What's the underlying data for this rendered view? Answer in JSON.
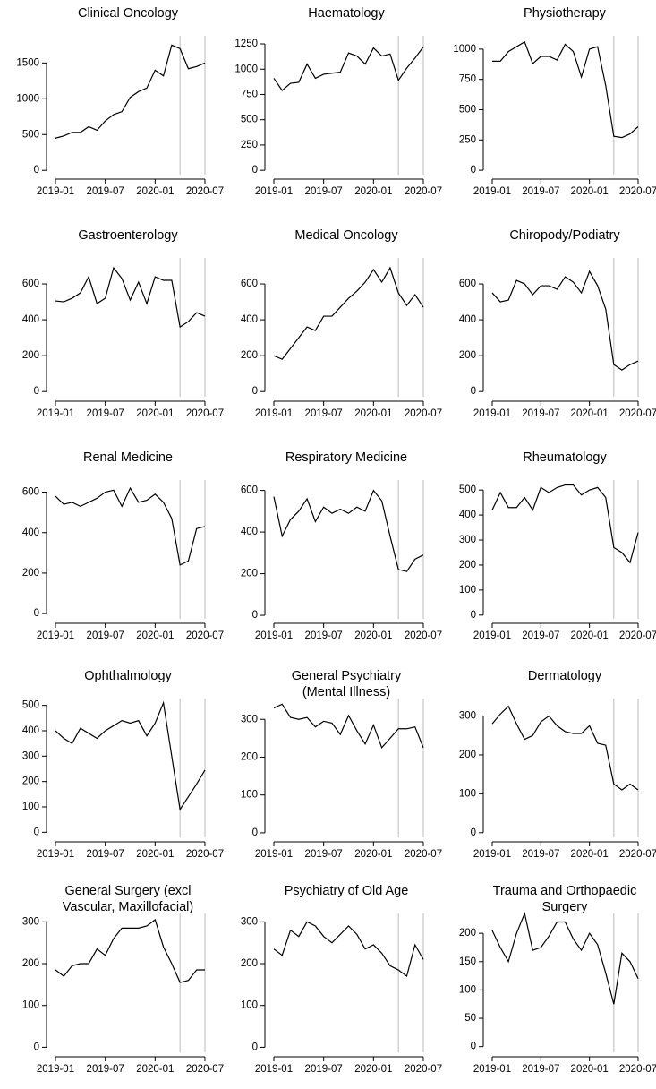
{
  "chart_data": [
    {
      "type": "line",
      "title": [
        "Clinical Oncology"
      ],
      "x": [
        "2019-01",
        "2019-02",
        "2019-03",
        "2019-04",
        "2019-05",
        "2019-06",
        "2019-07",
        "2019-08",
        "2019-09",
        "2019-10",
        "2019-11",
        "2019-12",
        "2020-01",
        "2020-02",
        "2020-03",
        "2020-04",
        "2020-05",
        "2020-06",
        "2020-07"
      ],
      "values": [
        450,
        480,
        530,
        530,
        610,
        560,
        690,
        780,
        820,
        1020,
        1100,
        1150,
        1400,
        1320,
        1750,
        1700,
        1420,
        1450,
        1500
      ],
      "color": "#000000",
      "ylim": [
        -60,
        1880
      ],
      "yticks": [
        0,
        500,
        1000,
        1500
      ],
      "xticks": [
        "2019-01",
        "2019-07",
        "2020-01",
        "2020-07"
      ],
      "vlines": [
        "2020-04",
        "2020-07"
      ],
      "vline_color": "#bbbbbb"
    },
    {
      "type": "line",
      "title": [
        "Haematology"
      ],
      "x": [
        "2019-01",
        "2019-02",
        "2019-03",
        "2019-04",
        "2019-05",
        "2019-06",
        "2019-07",
        "2019-08",
        "2019-09",
        "2019-10",
        "2019-11",
        "2019-12",
        "2020-01",
        "2020-02",
        "2020-03",
        "2020-04",
        "2020-05",
        "2020-06",
        "2020-07"
      ],
      "values": [
        910,
        790,
        860,
        870,
        1050,
        910,
        950,
        960,
        970,
        1160,
        1130,
        1050,
        1210,
        1130,
        1150,
        890,
        1010,
        1110,
        1220
      ],
      "color": "#000000",
      "ylim": [
        -43,
        1330
      ],
      "yticks": [
        0,
        250,
        500,
        750,
        1000,
        1250
      ],
      "xticks": [
        "2019-01",
        "2019-07",
        "2020-01",
        "2020-07"
      ],
      "vlines": [
        "2020-04",
        "2020-07"
      ],
      "vline_color": "#bbbbbb"
    },
    {
      "type": "line",
      "title": [
        "Physiotherapy"
      ],
      "x": [
        "2019-01",
        "2019-02",
        "2019-03",
        "2019-04",
        "2019-05",
        "2019-06",
        "2019-07",
        "2019-08",
        "2019-09",
        "2019-10",
        "2019-11",
        "2019-12",
        "2020-01",
        "2020-02",
        "2020-03",
        "2020-04",
        "2020-05",
        "2020-06",
        "2020-07"
      ],
      "values": [
        900,
        900,
        980,
        1020,
        1060,
        880,
        940,
        940,
        910,
        1040,
        980,
        770,
        1000,
        1020,
        700,
        280,
        270,
        300,
        360
      ],
      "color": "#000000",
      "ylim": [
        -36,
        1110
      ],
      "yticks": [
        0,
        250,
        500,
        750,
        1000
      ],
      "xticks": [
        "2019-01",
        "2019-07",
        "2020-01",
        "2020-07"
      ],
      "vlines": [
        "2020-04",
        "2020-07"
      ],
      "vline_color": "#bbbbbb"
    },
    {
      "type": "line",
      "title": [
        "Gastroenterology"
      ],
      "x": [
        "2019-01",
        "2019-02",
        "2019-03",
        "2019-04",
        "2019-05",
        "2019-06",
        "2019-07",
        "2019-08",
        "2019-09",
        "2019-10",
        "2019-11",
        "2019-12",
        "2020-01",
        "2020-02",
        "2020-03",
        "2020-04",
        "2020-05",
        "2020-06",
        "2020-07"
      ],
      "values": [
        505,
        500,
        520,
        550,
        640,
        490,
        520,
        690,
        630,
        510,
        610,
        490,
        640,
        620,
        620,
        360,
        390,
        440,
        420
      ],
      "color": "#000000",
      "ylim": [
        -29,
        745
      ],
      "yticks": [
        0,
        200,
        400,
        600
      ],
      "xticks": [
        "2019-01",
        "2019-07",
        "2020-01",
        "2020-07"
      ],
      "vlines": [
        "2020-04",
        "2020-07"
      ],
      "vline_color": "#bbbbbb"
    },
    {
      "type": "line",
      "title": [
        "Medical Oncology"
      ],
      "x": [
        "2019-01",
        "2019-02",
        "2019-03",
        "2019-04",
        "2019-05",
        "2019-06",
        "2019-07",
        "2019-08",
        "2019-09",
        "2019-10",
        "2019-11",
        "2019-12",
        "2020-01",
        "2020-02",
        "2020-03",
        "2020-04",
        "2020-05",
        "2020-06",
        "2020-07"
      ],
      "values": [
        200,
        180,
        240,
        300,
        360,
        340,
        420,
        420,
        470,
        520,
        560,
        610,
        680,
        610,
        690,
        550,
        480,
        540,
        470
      ],
      "color": "#000000",
      "ylim": [
        -29,
        745
      ],
      "yticks": [
        0,
        200,
        400,
        600
      ],
      "xticks": [
        "2019-01",
        "2019-07",
        "2020-01",
        "2020-07"
      ],
      "vlines": [
        "2020-04",
        "2020-07"
      ],
      "vline_color": "#bbbbbb"
    },
    {
      "type": "line",
      "title": [
        "Chiropody/Podiatry"
      ],
      "x": [
        "2019-01",
        "2019-02",
        "2019-03",
        "2019-04",
        "2019-05",
        "2019-06",
        "2019-07",
        "2019-08",
        "2019-09",
        "2019-10",
        "2019-11",
        "2019-12",
        "2020-01",
        "2020-02",
        "2020-03",
        "2020-04",
        "2020-05",
        "2020-06",
        "2020-07"
      ],
      "values": [
        550,
        500,
        510,
        620,
        600,
        540,
        590,
        590,
        570,
        640,
        610,
        550,
        670,
        590,
        460,
        150,
        120,
        150,
        170
      ],
      "color": "#000000",
      "ylim": [
        -29,
        745
      ],
      "yticks": [
        0,
        200,
        400,
        600
      ],
      "xticks": [
        "2019-01",
        "2019-07",
        "2020-01",
        "2020-07"
      ],
      "vlines": [
        "2020-04",
        "2020-07"
      ],
      "vline_color": "#bbbbbb"
    },
    {
      "type": "line",
      "title": [
        "Renal Medicine"
      ],
      "x": [
        "2019-01",
        "2019-02",
        "2019-03",
        "2019-04",
        "2019-05",
        "2019-06",
        "2019-07",
        "2019-08",
        "2019-09",
        "2019-10",
        "2019-11",
        "2019-12",
        "2020-01",
        "2020-02",
        "2020-03",
        "2020-04",
        "2020-05",
        "2020-06",
        "2020-07"
      ],
      "values": [
        580,
        540,
        550,
        530,
        550,
        570,
        600,
        610,
        530,
        620,
        550,
        560,
        590,
        550,
        470,
        240,
        260,
        420,
        430
      ],
      "color": "#000000",
      "ylim": [
        -26,
        660
      ],
      "yticks": [
        0,
        200,
        400,
        600
      ],
      "xticks": [
        "2019-01",
        "2019-07",
        "2020-01",
        "2020-07"
      ],
      "vlines": [
        "2020-04",
        "2020-07"
      ],
      "vline_color": "#bbbbbb"
    },
    {
      "type": "line",
      "title": [
        "Respiratory Medicine"
      ],
      "x": [
        "2019-01",
        "2019-02",
        "2019-03",
        "2019-04",
        "2019-05",
        "2019-06",
        "2019-07",
        "2019-08",
        "2019-09",
        "2019-10",
        "2019-11",
        "2019-12",
        "2020-01",
        "2020-02",
        "2020-03",
        "2020-04",
        "2020-05",
        "2020-06",
        "2020-07"
      ],
      "values": [
        570,
        380,
        460,
        500,
        560,
        450,
        520,
        490,
        510,
        490,
        520,
        500,
        600,
        550,
        380,
        220,
        210,
        270,
        290
      ],
      "color": "#000000",
      "ylim": [
        -17,
        650
      ],
      "yticks": [
        0,
        200,
        400,
        600
      ],
      "xticks": [
        "2019-01",
        "2019-07",
        "2020-01",
        "2020-07"
      ],
      "vlines": [
        "2020-04",
        "2020-07"
      ],
      "vline_color": "#bbbbbb"
    },
    {
      "type": "line",
      "title": [
        "Rheumatology"
      ],
      "x": [
        "2019-01",
        "2019-02",
        "2019-03",
        "2019-04",
        "2019-05",
        "2019-06",
        "2019-07",
        "2019-08",
        "2019-09",
        "2019-10",
        "2019-11",
        "2019-12",
        "2020-01",
        "2020-02",
        "2020-03",
        "2020-04",
        "2020-05",
        "2020-06",
        "2020-07"
      ],
      "values": [
        420,
        490,
        430,
        430,
        470,
        420,
        510,
        490,
        510,
        520,
        520,
        480,
        500,
        510,
        470,
        270,
        250,
        210,
        330
      ],
      "color": "#000000",
      "ylim": [
        -15,
        540
      ],
      "yticks": [
        0,
        100,
        200,
        300,
        400,
        500
      ],
      "xticks": [
        "2019-01",
        "2019-07",
        "2020-01",
        "2020-07"
      ],
      "vlines": [
        "2020-04",
        "2020-07"
      ],
      "vline_color": "#bbbbbb"
    },
    {
      "type": "line",
      "title": [
        "Ophthalmology"
      ],
      "x": [
        "2019-01",
        "2019-02",
        "2019-03",
        "2019-04",
        "2019-05",
        "2019-06",
        "2019-07",
        "2019-08",
        "2019-09",
        "2019-10",
        "2019-11",
        "2019-12",
        "2020-01",
        "2020-02",
        "2020-03",
        "2020-04",
        "2020-05",
        "2020-06",
        "2020-07"
      ],
      "values": [
        400,
        370,
        350,
        410,
        390,
        370,
        400,
        420,
        440,
        430,
        440,
        380,
        430,
        510,
        300,
        90,
        140,
        190,
        245
      ],
      "color": "#000000",
      "ylim": [
        -20,
        527
      ],
      "yticks": [
        0,
        100,
        200,
        300,
        400,
        500
      ],
      "xticks": [
        "2019-01",
        "2019-07",
        "2020-01",
        "2020-07"
      ],
      "vlines": [
        "2020-04",
        "2020-07"
      ],
      "vline_color": "#bbbbbb"
    },
    {
      "type": "line",
      "title": [
        "General Psychiatry",
        "(Mental Illness)"
      ],
      "x": [
        "2019-01",
        "2019-02",
        "2019-03",
        "2019-04",
        "2019-05",
        "2019-06",
        "2019-07",
        "2019-08",
        "2019-09",
        "2019-10",
        "2019-11",
        "2019-12",
        "2020-01",
        "2020-02",
        "2020-03",
        "2020-04",
        "2020-05",
        "2020-06",
        "2020-07"
      ],
      "values": [
        330,
        340,
        305,
        300,
        305,
        280,
        295,
        290,
        260,
        310,
        270,
        235,
        285,
        225,
        250,
        275,
        275,
        280,
        225
      ],
      "color": "#000000",
      "ylim": [
        -12,
        355
      ],
      "yticks": [
        0,
        100,
        200,
        300
      ],
      "xticks": [
        "2019-01",
        "2019-07",
        "2020-01",
        "2020-07"
      ],
      "vlines": [
        "2020-04",
        "2020-07"
      ],
      "vline_color": "#bbbbbb"
    },
    {
      "type": "line",
      "title": [
        "Dermatology"
      ],
      "x": [
        "2019-01",
        "2019-02",
        "2019-03",
        "2019-04",
        "2019-05",
        "2019-06",
        "2019-07",
        "2019-08",
        "2019-09",
        "2019-10",
        "2019-11",
        "2019-12",
        "2020-01",
        "2020-02",
        "2020-03",
        "2020-04",
        "2020-05",
        "2020-06",
        "2020-07"
      ],
      "values": [
        280,
        305,
        325,
        280,
        240,
        250,
        285,
        300,
        275,
        260,
        255,
        255,
        275,
        230,
        225,
        125,
        110,
        125,
        110
      ],
      "color": "#000000",
      "ylim": [
        -12,
        345
      ],
      "yticks": [
        0,
        100,
        200,
        300
      ],
      "xticks": [
        "2019-01",
        "2019-07",
        "2020-01",
        "2020-07"
      ],
      "vlines": [
        "2020-04",
        "2020-07"
      ],
      "vline_color": "#bbbbbb"
    },
    {
      "type": "line",
      "title": [
        "General Surgery (excl",
        "Vascular, Maxillofacial)"
      ],
      "x": [
        "2019-01",
        "2019-02",
        "2019-03",
        "2019-04",
        "2019-05",
        "2019-06",
        "2019-07",
        "2019-08",
        "2019-09",
        "2019-10",
        "2019-11",
        "2019-12",
        "2020-01",
        "2020-02",
        "2020-03",
        "2020-04",
        "2020-05",
        "2020-06",
        "2020-07"
      ],
      "values": [
        185,
        170,
        195,
        200,
        200,
        235,
        220,
        260,
        285,
        285,
        285,
        290,
        305,
        240,
        200,
        155,
        160,
        185,
        185
      ],
      "color": "#000000",
      "ylim": [
        -12,
        320
      ],
      "yticks": [
        0,
        100,
        200,
        300
      ],
      "xticks": [
        "2019-01",
        "2019-07",
        "2020-01",
        "2020-07"
      ],
      "vlines": [
        "2020-04",
        "2020-07"
      ],
      "vline_color": "#bbbbbb"
    },
    {
      "type": "line",
      "title": [
        "Psychiatry of Old Age"
      ],
      "x": [
        "2019-01",
        "2019-02",
        "2019-03",
        "2019-04",
        "2019-05",
        "2019-06",
        "2019-07",
        "2019-08",
        "2019-09",
        "2019-10",
        "2019-11",
        "2019-12",
        "2020-01",
        "2020-02",
        "2020-03",
        "2020-04",
        "2020-05",
        "2020-06",
        "2020-07"
      ],
      "values": [
        235,
        220,
        280,
        265,
        300,
        290,
        265,
        250,
        270,
        290,
        270,
        235,
        245,
        225,
        195,
        185,
        170,
        245,
        210
      ],
      "color": "#000000",
      "ylim": [
        -12,
        320
      ],
      "yticks": [
        0,
        100,
        200,
        300
      ],
      "xticks": [
        "2019-01",
        "2019-07",
        "2020-01",
        "2020-07"
      ],
      "vlines": [
        "2020-04",
        "2020-07"
      ],
      "vline_color": "#bbbbbb"
    },
    {
      "type": "line",
      "title": [
        "Trauma and Orthopaedic",
        "Surgery"
      ],
      "x": [
        "2019-01",
        "2019-02",
        "2019-03",
        "2019-04",
        "2019-05",
        "2019-06",
        "2019-07",
        "2019-08",
        "2019-09",
        "2019-10",
        "2019-11",
        "2019-12",
        "2020-01",
        "2020-02",
        "2020-03",
        "2020-04",
        "2020-05",
        "2020-06",
        "2020-07"
      ],
      "values": [
        205,
        175,
        150,
        200,
        235,
        170,
        175,
        195,
        220,
        220,
        190,
        170,
        200,
        180,
        130,
        75,
        165,
        150,
        120
      ],
      "color": "#000000",
      "ylim": [
        -10,
        235
      ],
      "yticks": [
        0,
        50,
        100,
        150,
        200
      ],
      "xticks": [
        "2019-01",
        "2019-07",
        "2020-01",
        "2020-07"
      ],
      "vlines": [
        "2020-04",
        "2020-07"
      ],
      "vline_color": "#bbbbbb"
    }
  ]
}
